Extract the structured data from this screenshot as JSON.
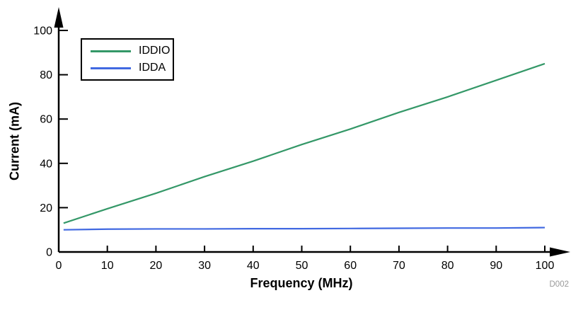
{
  "chart_data": {
    "type": "line",
    "title": "",
    "xlabel": "Frequency (MHz)",
    "ylabel": "Current (mA)",
    "xlim": [
      0,
      100
    ],
    "ylim": [
      0,
      100
    ],
    "x_ticks": [
      0,
      10,
      20,
      30,
      40,
      50,
      60,
      70,
      80,
      90,
      100
    ],
    "y_ticks": [
      0,
      20,
      40,
      60,
      80,
      100
    ],
    "grid": false,
    "legend_position": "top-left",
    "x": [
      1,
      10,
      20,
      30,
      40,
      50,
      60,
      70,
      80,
      90,
      100
    ],
    "series": [
      {
        "name": "IDDIO",
        "color": "#349868",
        "values": [
          13,
          19.5,
          26.5,
          34,
          41,
          48.5,
          55.5,
          63,
          70,
          77.5,
          85
        ]
      },
      {
        "name": "IDDA",
        "color": "#4169E1",
        "values": [
          10,
          10.3,
          10.4,
          10.4,
          10.5,
          10.5,
          10.6,
          10.7,
          10.8,
          10.8,
          11
        ]
      }
    ]
  },
  "watermark": "D002",
  "colors": {
    "axis": "#000000",
    "tick_label": "#000000",
    "watermark": "#999999",
    "background": "#ffffff"
  }
}
